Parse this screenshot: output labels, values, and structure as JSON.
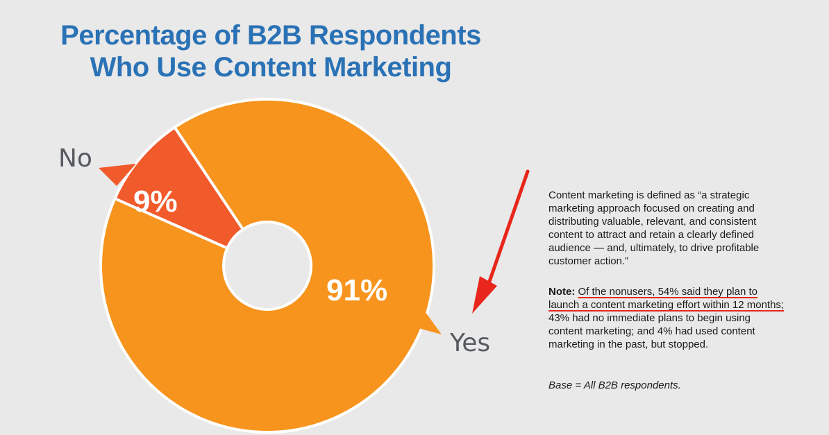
{
  "title_line1": "Percentage of B2B Respondents",
  "title_line2": "Who Use Content Marketing",
  "chart_data": {
    "type": "pie",
    "variant": "donut",
    "categories": [
      "Yes",
      "No"
    ],
    "values": [
      91,
      9
    ],
    "value_labels": [
      "91%",
      "9%"
    ],
    "colors": {
      "Yes": "#f7941d",
      "No": "#f15a2b"
    }
  },
  "definition_text": "Content marketing is defined as “a strategic marketing approach focused on creating and distributing valuable, relevant, and consistent content to attract and retain a clearly defined audience — and, ultimately, to drive profitable customer action.”",
  "note": {
    "label": "Note:",
    "highlighted": "Of the nonusers, 54% said they plan to launch a content marketing effort within 12 months;",
    "rest": "43% had no immediate plans to begin using content marketing; and 4% had used content marketing in the past, but stopped."
  },
  "base_text": "Base = All B2B respondents.",
  "colors": {
    "background": "#e9e9e9",
    "title": "#2a72b5",
    "yes_slice": "#f7941d",
    "no_slice": "#f15a2b",
    "annotation": "#e8261b"
  }
}
